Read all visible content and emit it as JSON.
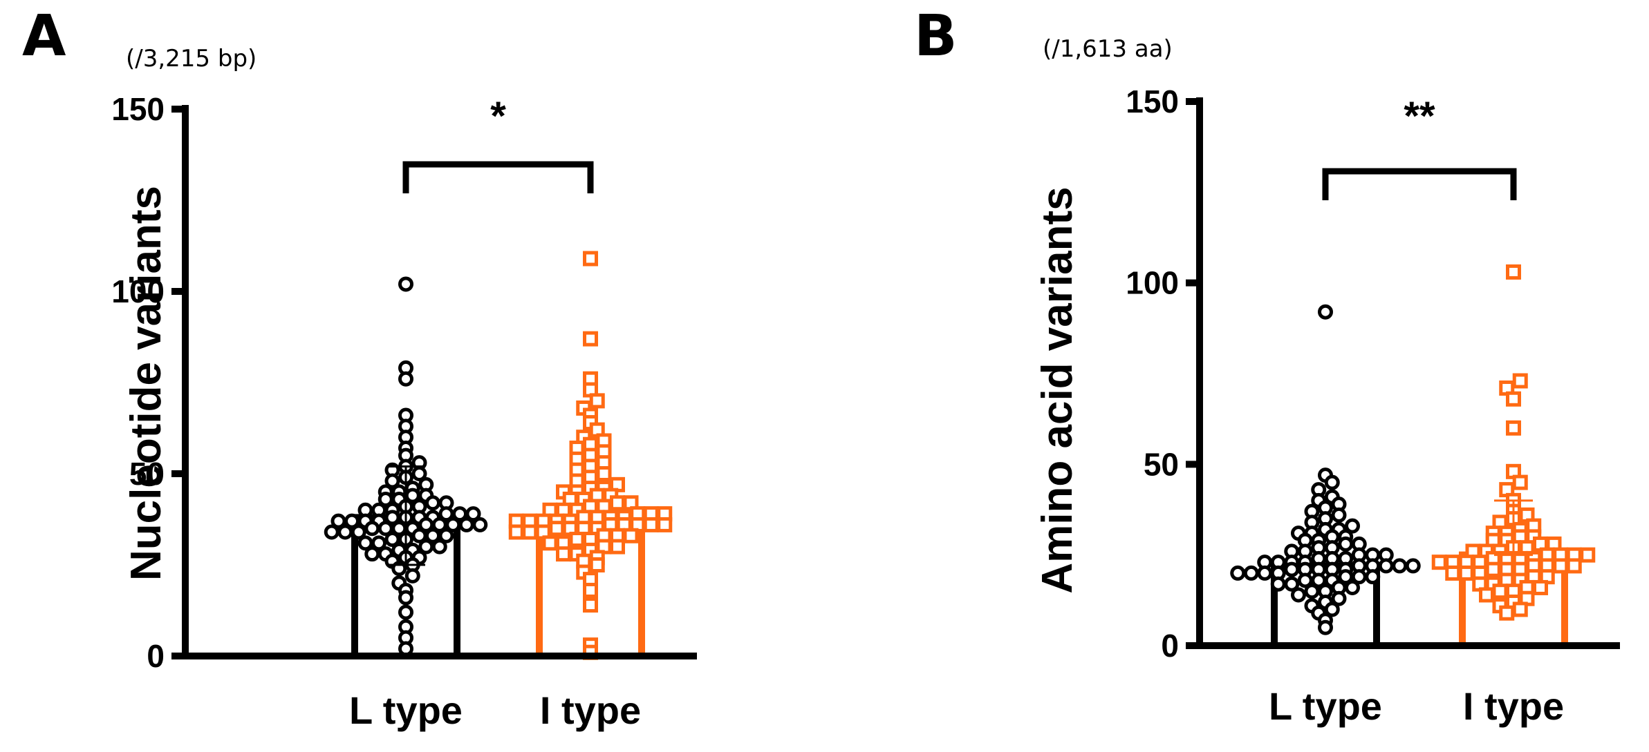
{
  "chart_data": [
    {
      "type": "bar",
      "panel": "A",
      "unit_note": "(/3,215 bp)",
      "ylabel": "Nucleotide variants",
      "xlabel": "",
      "ylim": [
        0,
        150
      ],
      "yticks": [
        0,
        50,
        100,
        150
      ],
      "categories": [
        "L type",
        "I type"
      ],
      "significance": "*",
      "colors": [
        "#000000",
        "#ff6a13"
      ],
      "markers": [
        "circle",
        "square"
      ],
      "series": [
        {
          "name": "L type",
          "mean": 38,
          "error": [
            25,
            52
          ],
          "points": [
            2,
            5,
            8,
            12,
            16,
            18,
            20,
            22,
            24,
            25,
            26,
            27,
            27,
            28,
            28,
            29,
            29,
            30,
            30,
            31,
            31,
            32,
            32,
            33,
            33,
            33,
            34,
            34,
            34,
            35,
            35,
            35,
            35,
            36,
            36,
            36,
            36,
            36,
            37,
            37,
            37,
            37,
            38,
            38,
            38,
            38,
            39,
            39,
            39,
            40,
            40,
            40,
            41,
            41,
            42,
            42,
            43,
            43,
            44,
            44,
            45,
            45,
            46,
            47,
            48,
            49,
            50,
            51,
            52,
            53,
            55,
            57,
            60,
            63,
            66,
            76,
            79,
            102
          ]
        },
        {
          "name": "I type",
          "mean": 37,
          "error": [
            37,
            37
          ],
          "points": [
            1,
            3,
            14,
            18,
            21,
            23,
            25,
            26,
            27,
            28,
            28,
            29,
            30,
            30,
            31,
            31,
            32,
            32,
            33,
            33,
            33,
            34,
            34,
            34,
            35,
            35,
            35,
            35,
            36,
            36,
            36,
            36,
            36,
            37,
            37,
            37,
            37,
            37,
            38,
            38,
            38,
            38,
            39,
            39,
            39,
            40,
            40,
            40,
            41,
            41,
            42,
            42,
            43,
            43,
            44,
            44,
            45,
            45,
            46,
            46,
            47,
            48,
            49,
            50,
            51,
            52,
            53,
            54,
            55,
            56,
            57,
            58,
            59,
            60,
            62,
            64,
            66,
            68,
            70,
            73,
            76,
            87,
            109
          ]
        }
      ]
    },
    {
      "type": "bar",
      "panel": "B",
      "unit_note": "(/1,613 aa)",
      "ylabel": "Amino acid variants",
      "xlabel": "",
      "ylim": [
        0,
        150
      ],
      "yticks": [
        0,
        50,
        100,
        150
      ],
      "categories": [
        "L type",
        "I type"
      ],
      "significance": "**",
      "colors": [
        "#000000",
        "#ff6a13"
      ],
      "markers": [
        "circle",
        "square"
      ],
      "series": [
        {
          "name": "L type",
          "mean": 22,
          "error": [
            22,
            22
          ],
          "points": [
            5,
            7,
            9,
            10,
            11,
            12,
            13,
            14,
            15,
            15,
            16,
            16,
            17,
            17,
            18,
            18,
            18,
            19,
            19,
            19,
            20,
            20,
            20,
            20,
            21,
            21,
            21,
            21,
            21,
            22,
            22,
            22,
            22,
            22,
            23,
            23,
            23,
            23,
            24,
            24,
            24,
            25,
            25,
            25,
            26,
            26,
            27,
            27,
            28,
            28,
            29,
            29,
            30,
            30,
            31,
            31,
            32,
            32,
            33,
            34,
            35,
            36,
            37,
            38,
            39,
            40,
            41,
            43,
            45,
            47,
            92
          ]
        },
        {
          "name": "I type",
          "mean": 25,
          "error": [
            25,
            40
          ],
          "points": [
            9,
            10,
            11,
            12,
            13,
            14,
            15,
            15,
            16,
            16,
            17,
            17,
            18,
            18,
            19,
            19,
            20,
            20,
            20,
            21,
            21,
            21,
            22,
            22,
            22,
            22,
            23,
            23,
            23,
            23,
            24,
            24,
            24,
            24,
            25,
            25,
            25,
            25,
            26,
            26,
            26,
            27,
            27,
            28,
            28,
            29,
            29,
            30,
            30,
            31,
            31,
            32,
            33,
            34,
            35,
            36,
            37,
            40,
            43,
            45,
            48,
            60,
            68,
            71,
            73,
            103
          ]
        }
      ]
    }
  ]
}
